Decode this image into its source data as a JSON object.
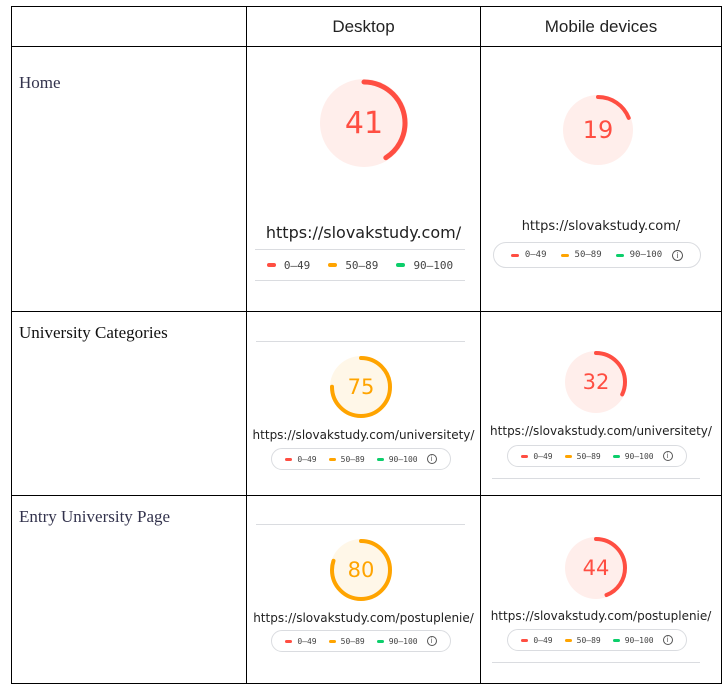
{
  "header": {
    "col_desktop": "Desktop",
    "col_mobile": "Mobile devices"
  },
  "colors": {
    "fail": "#ff4e42",
    "fail_bg": "#ffeeeb",
    "average": "#ffa400",
    "average_bg": "#fff7e8",
    "pass": "#0cce6b"
  },
  "legend": {
    "range_fail": "0–49",
    "range_average": "50–89",
    "range_pass": "90–100",
    "info_icon": "info-icon"
  },
  "rows": [
    {
      "label": "Home",
      "desktop": {
        "score": "41",
        "url": "https://slovakstudy.com/"
      },
      "mobile": {
        "score": "19",
        "url": "https://slovakstudy.com/"
      }
    },
    {
      "label": "University Categories",
      "desktop": {
        "score": "75",
        "url": "https://slovakstudy.com/universitety/"
      },
      "mobile": {
        "score": "32",
        "url": "https://slovakstudy.com/universitety/"
      }
    },
    {
      "label": "Entry University Page",
      "desktop": {
        "score": "80",
        "url": "https://slovakstudy.com/postuplenie/"
      },
      "mobile": {
        "score": "44",
        "url": "https://slovakstudy.com/postuplenie/"
      }
    }
  ]
}
